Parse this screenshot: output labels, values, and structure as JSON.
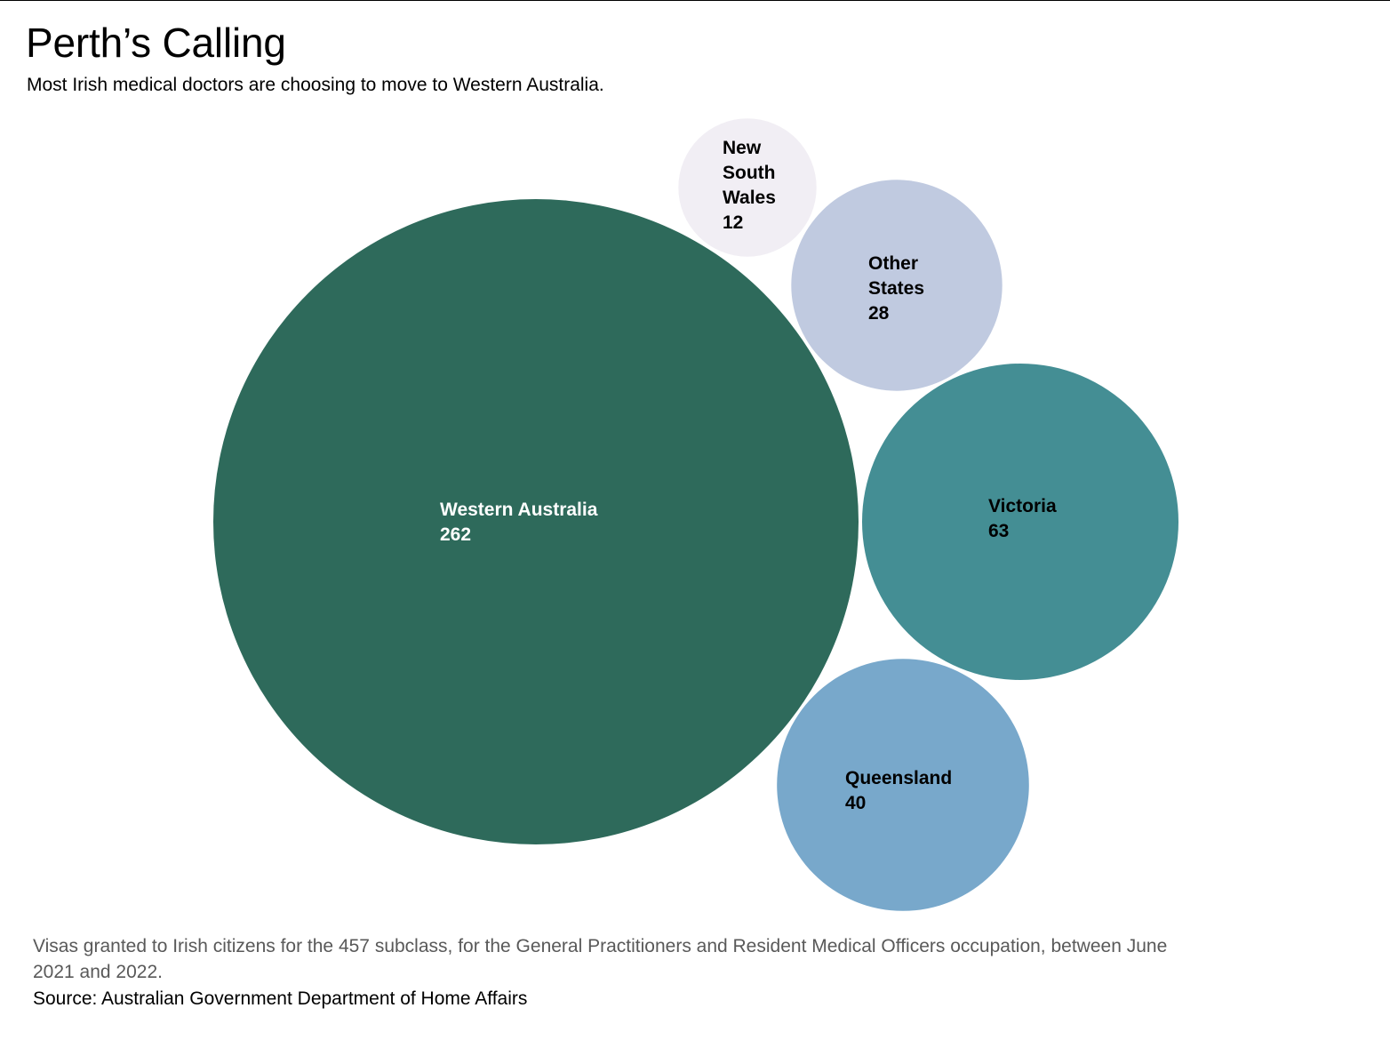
{
  "header": {
    "title": "Perth’s Calling",
    "subtitle": "Most Irish medical doctors are choosing to move to Western Australia."
  },
  "footer": {
    "note": "Visas granted to Irish citizens for the 457 subclass, for the General Practitioners and Resident Medical Officers occupation, between June 2021 and 2022.",
    "source": "Source: Australian Government Department of Home Affairs"
  },
  "chart_data": {
    "type": "bubble",
    "title": "Perth’s Calling",
    "subtitle": "Most Irish medical doctors are choosing to move to Western Australia.",
    "value_label": "",
    "bubbles": [
      {
        "name": "Western Australia",
        "label_lines": [
          "Western Australia"
        ],
        "value": 262,
        "color": "#2e6a5b",
        "text_color": "#ffffff"
      },
      {
        "name": "New South Wales",
        "label_lines": [
          "New",
          "South",
          "Wales"
        ],
        "value": 12,
        "color": "#f1eef4",
        "text_color": "#000000"
      },
      {
        "name": "Other States",
        "label_lines": [
          "Other",
          "States"
        ],
        "value": 28,
        "color": "#c0cae0",
        "text_color": "#000000"
      },
      {
        "name": "Victoria",
        "label_lines": [
          "Victoria"
        ],
        "value": 63,
        "color": "#448e94",
        "text_color": "#000000"
      },
      {
        "name": "Queensland",
        "label_lines": [
          "Queensland"
        ],
        "value": 40,
        "color": "#78a8cb",
        "text_color": "#000000"
      }
    ]
  }
}
